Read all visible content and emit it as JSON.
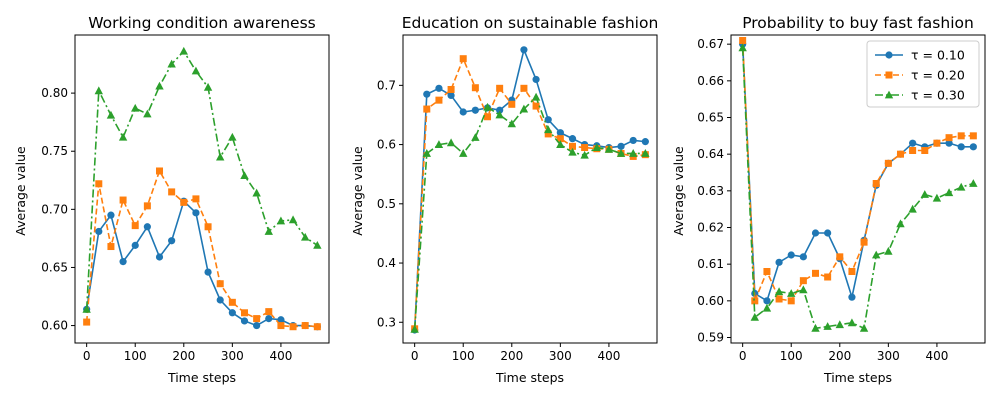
{
  "figure": {
    "background": "#ffffff"
  },
  "series_styles": [
    {
      "name": "τ = 0.10",
      "color": "#1f77b4",
      "dash": "",
      "marker": "circle"
    },
    {
      "name": "τ = 0.20",
      "color": "#ff7f0e",
      "dash": "6,3",
      "marker": "square"
    },
    {
      "name": "τ = 0.30",
      "color": "#2ca02c",
      "dash": "8,3,2,3",
      "marker": "triangle"
    }
  ],
  "chart_data": [
    {
      "type": "line",
      "title": "Working condition awareness",
      "xlabel": "Time steps",
      "ylabel": "Average value",
      "xlim": [
        -24,
        499
      ],
      "ylim": [
        0.585,
        0.85
      ],
      "xticks": [
        0,
        100,
        200,
        300,
        400
      ],
      "yticks": [
        0.6,
        0.65,
        0.7,
        0.75,
        0.8
      ],
      "ytick_labels": [
        "0.60",
        "0.65",
        "0.70",
        "0.75",
        "0.80"
      ],
      "x": [
        0,
        25,
        50,
        75,
        100,
        125,
        150,
        175,
        200,
        225,
        250,
        275,
        300,
        325,
        350,
        375,
        400,
        425,
        450,
        475
      ],
      "series": [
        {
          "name": "τ = 0.10",
          "values": [
            0.614,
            0.681,
            0.695,
            0.655,
            0.669,
            0.685,
            0.659,
            0.673,
            0.707,
            0.697,
            0.646,
            0.622,
            0.611,
            0.604,
            0.6,
            0.606,
            0.605,
            0.6,
            0.6,
            0.599
          ]
        },
        {
          "name": "τ = 0.20",
          "values": [
            0.603,
            0.722,
            0.668,
            0.708,
            0.686,
            0.703,
            0.733,
            0.715,
            0.706,
            0.709,
            0.685,
            0.636,
            0.62,
            0.611,
            0.606,
            0.612,
            0.6,
            0.599,
            0.6,
            0.599
          ]
        },
        {
          "name": "τ = 0.30",
          "values": [
            0.614,
            0.802,
            0.781,
            0.762,
            0.787,
            0.782,
            0.806,
            0.825,
            0.836,
            0.819,
            0.805,
            0.745,
            0.762,
            0.729,
            0.714,
            0.681,
            0.69,
            0.691,
            0.676,
            0.669
          ]
        }
      ],
      "legend": null
    },
    {
      "type": "line",
      "title": "Education on sustainable fashion",
      "xlabel": "Time steps",
      "ylabel": "Average value",
      "xlim": [
        -24,
        499
      ],
      "ylim": [
        0.265,
        0.785
      ],
      "xticks": [
        0,
        100,
        200,
        300,
        400
      ],
      "yticks": [
        0.3,
        0.4,
        0.5,
        0.6,
        0.7
      ],
      "ytick_labels": [
        "0.3",
        "0.4",
        "0.5",
        "0.6",
        "0.7"
      ],
      "x": [
        0,
        25,
        50,
        75,
        100,
        125,
        150,
        175,
        200,
        225,
        250,
        275,
        300,
        325,
        350,
        375,
        400,
        425,
        450,
        475
      ],
      "series": [
        {
          "name": "τ = 0.10",
          "values": [
            0.287,
            0.685,
            0.695,
            0.683,
            0.655,
            0.658,
            0.662,
            0.658,
            0.675,
            0.76,
            0.71,
            0.642,
            0.62,
            0.61,
            0.6,
            0.598,
            0.595,
            0.597,
            0.607,
            0.605
          ]
        },
        {
          "name": "τ = 0.20",
          "values": [
            0.289,
            0.66,
            0.675,
            0.693,
            0.745,
            0.696,
            0.647,
            0.695,
            0.668,
            0.695,
            0.665,
            0.618,
            0.61,
            0.597,
            0.595,
            0.593,
            0.592,
            0.585,
            0.58,
            0.583
          ]
        },
        {
          "name": "τ = 0.30",
          "values": [
            0.288,
            0.585,
            0.6,
            0.603,
            0.585,
            0.612,
            0.663,
            0.65,
            0.635,
            0.66,
            0.68,
            0.625,
            0.6,
            0.587,
            0.582,
            0.595,
            0.592,
            0.585,
            0.585,
            0.585
          ]
        }
      ],
      "legend": null
    },
    {
      "type": "line",
      "title": "Probability to buy fast fashion",
      "xlabel": "Time steps",
      "ylabel": "Average value",
      "xlim": [
        -24,
        499
      ],
      "ylim": [
        0.5885,
        0.6725
      ],
      "xticks": [
        0,
        100,
        200,
        300,
        400
      ],
      "yticks": [
        0.59,
        0.6,
        0.61,
        0.62,
        0.63,
        0.64,
        0.65,
        0.66,
        0.67
      ],
      "ytick_labels": [
        "0.59",
        "0.60",
        "0.61",
        "0.62",
        "0.63",
        "0.64",
        "0.65",
        "0.66",
        "0.67"
      ],
      "x": [
        0,
        25,
        50,
        75,
        100,
        125,
        150,
        175,
        200,
        225,
        250,
        275,
        300,
        325,
        350,
        375,
        400,
        425,
        450,
        475
      ],
      "series": [
        {
          "name": "τ = 0.10",
          "values": [
            0.67,
            0.602,
            0.6,
            0.6105,
            0.6125,
            0.612,
            0.6185,
            0.6185,
            0.6115,
            0.601,
            0.6165,
            0.6315,
            0.6375,
            0.64,
            0.643,
            0.642,
            0.643,
            0.643,
            0.642,
            0.642
          ]
        },
        {
          "name": "τ = 0.20",
          "values": [
            0.671,
            0.6,
            0.608,
            0.6005,
            0.6,
            0.6055,
            0.6075,
            0.6065,
            0.612,
            0.608,
            0.616,
            0.632,
            0.6375,
            0.64,
            0.641,
            0.641,
            0.643,
            0.6445,
            0.645,
            0.645
          ]
        },
        {
          "name": "τ = 0.30",
          "values": [
            0.669,
            0.5955,
            0.598,
            0.6025,
            0.602,
            0.603,
            0.5925,
            0.593,
            0.5935,
            0.594,
            0.5925,
            0.6125,
            0.6135,
            0.621,
            0.625,
            0.629,
            0.628,
            0.6295,
            0.631,
            0.632
          ]
        }
      ],
      "legend": {
        "placement": "top-right",
        "entries": [
          "τ = 0.10",
          "τ = 0.20",
          "τ = 0.30"
        ]
      }
    }
  ]
}
